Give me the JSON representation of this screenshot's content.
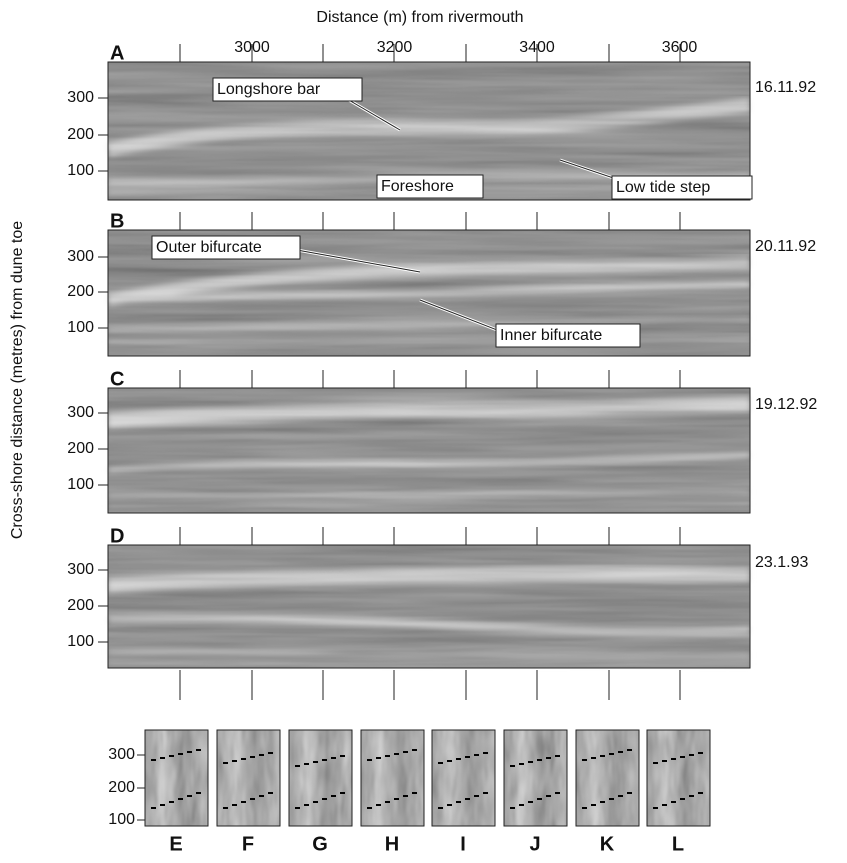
{
  "x_axis": {
    "title": "Distance (m) from rivermouth",
    "ticks": [
      3000,
      3200,
      3400,
      3600
    ]
  },
  "y_axis": {
    "title": "Cross-shore distance (metres) from dune toe",
    "ticks": [
      300,
      200,
      100
    ]
  },
  "panels": [
    {
      "label": "A",
      "date": "16.11.92",
      "annotations": [
        "Longshore bar",
        "Foreshore",
        "Low tide step"
      ]
    },
    {
      "label": "B",
      "date": "20.11.92",
      "annotations": [
        "Outer bifurcate",
        "Inner bifurcate"
      ]
    },
    {
      "label": "C",
      "date": "19.12.92",
      "annotations": []
    },
    {
      "label": "D",
      "date": "23.1.93",
      "annotations": []
    }
  ],
  "profiles": [
    "E",
    "F",
    "G",
    "H",
    "I",
    "J",
    "K",
    "L"
  ]
}
